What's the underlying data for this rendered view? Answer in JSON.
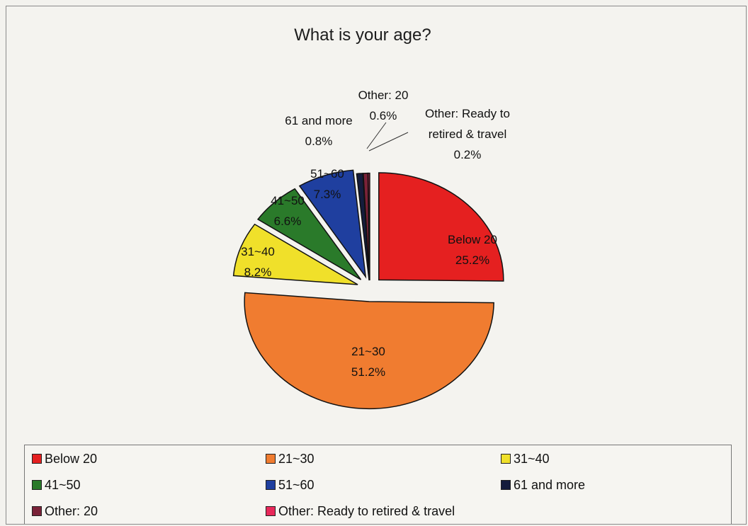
{
  "chart_data": {
    "type": "pie",
    "title": "What is your age?",
    "slices": [
      {
        "label": "Below 20",
        "value": 25.2,
        "display": "25.2%",
        "color": "#e52020"
      },
      {
        "label": "21~30",
        "value": 51.2,
        "display": "51.2%",
        "color": "#f07c30"
      },
      {
        "label": "31~40",
        "value": 8.2,
        "display": "8.2%",
        "color": "#f0e02a"
      },
      {
        "label": "41~50",
        "value": 6.6,
        "display": "6.6%",
        "color": "#2a7a2a"
      },
      {
        "label": "51~60",
        "value": 7.3,
        "display": "7.3%",
        "color": "#1f3f9f"
      },
      {
        "label": "61 and more",
        "value": 0.8,
        "display": "0.8%",
        "color": "#141c3c"
      },
      {
        "label": "Other: 20",
        "value": 0.6,
        "display": "0.6%",
        "color": "#7a2238"
      },
      {
        "label": "Other: Ready to retired & travel",
        "value": 0.2,
        "display": "0.2%",
        "color": "#e8285a"
      }
    ],
    "legend": {
      "position": "bottom",
      "items": [
        "Below 20",
        "21~30",
        "31~40",
        "41~50",
        "51~60",
        "61 and more",
        "Other: 20",
        "Other: Ready to retired & travel"
      ]
    },
    "callout_labels": {
      "other_20": [
        "Other: 20",
        "0.6%"
      ],
      "sixty_one": [
        "61 and more",
        "0.8%"
      ],
      "other_ready": [
        "Other: Ready to",
        "retired & travel",
        "0.2%"
      ]
    },
    "inside_labels": {
      "below_20": [
        "Below 20",
        "25.2%"
      ],
      "21_30": [
        "21~30",
        "51.2%"
      ],
      "31_40": [
        "31~40",
        "8.2%"
      ],
      "41_50": [
        "41~50",
        "6.6%"
      ],
      "51_60": [
        "51~60",
        "7.3%"
      ]
    }
  }
}
